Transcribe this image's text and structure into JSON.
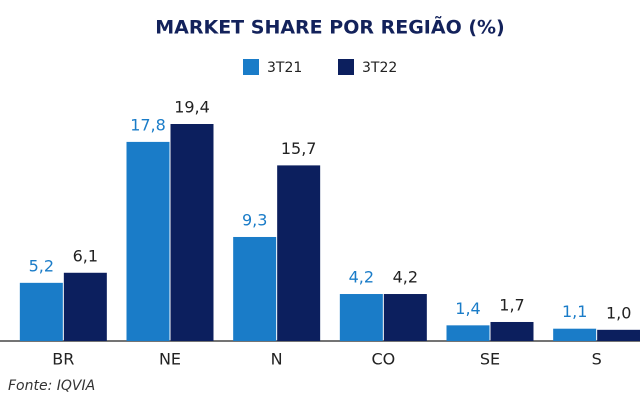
{
  "chart_data": {
    "type": "bar",
    "title": "MARKET SHARE POR REGIÃO (%)",
    "categories": [
      "BR",
      "NE",
      "N",
      "CO",
      "SE",
      "S"
    ],
    "series": [
      {
        "name": "3T21",
        "color": "#1a7cc8",
        "values": [
          5.2,
          17.8,
          9.3,
          4.2,
          1.4,
          1.1
        ],
        "value_labels": [
          "5,2",
          "17,8",
          "9,3",
          "4,2",
          "1,4",
          "1,1"
        ]
      },
      {
        "name": "3T22",
        "color": "#0c1f5e",
        "values": [
          6.1,
          19.4,
          15.7,
          4.2,
          1.7,
          1.0
        ],
        "value_labels": [
          "6,1",
          "19,4",
          "15,7",
          "4,2",
          "1,7",
          "1,0"
        ]
      }
    ],
    "source": "Fonte: IQVIA"
  }
}
